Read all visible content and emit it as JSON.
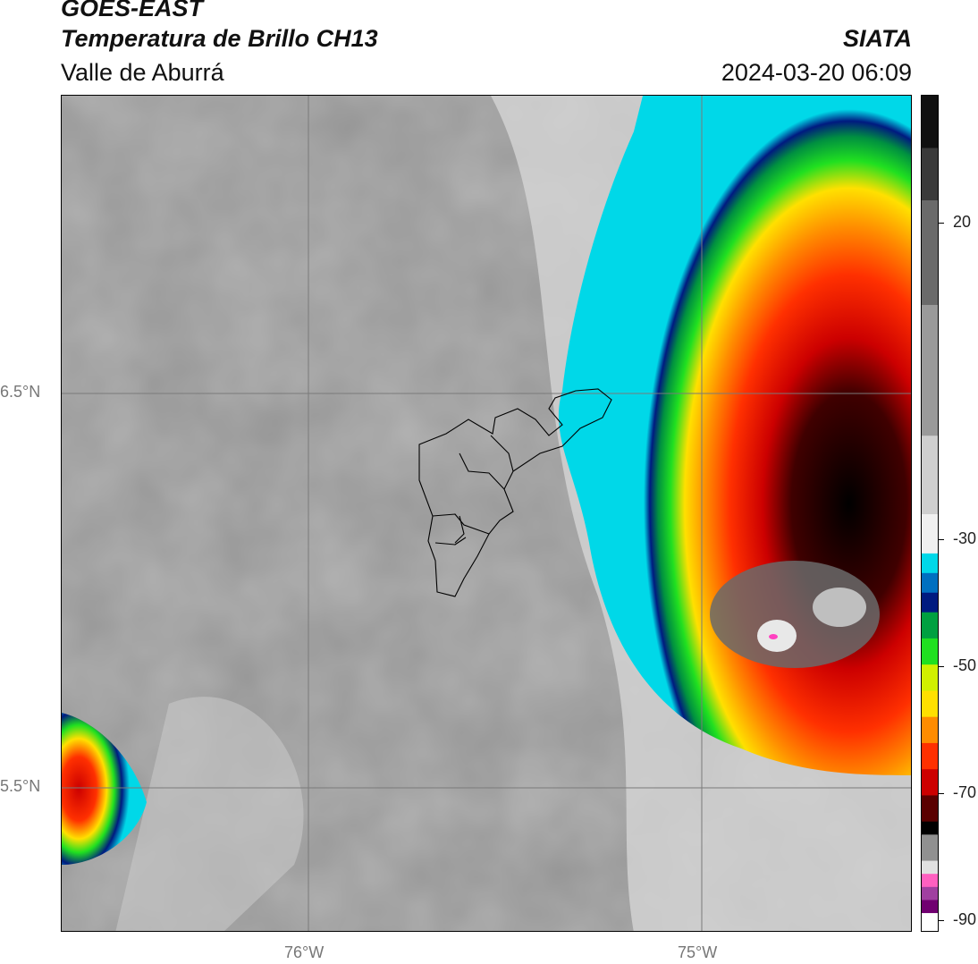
{
  "header": {
    "title_line1": "GOES-EAST",
    "title_line2": "Temperatura de Brillo CH13",
    "region": "Valle de Aburrá",
    "organization": "SIATA",
    "datetime": "2024-03-20 06:09"
  },
  "map": {
    "lat_labels": [
      "6.5°N",
      "5.5°N"
    ],
    "lon_labels": [
      "76°W",
      "75°W"
    ]
  },
  "colorbar": {
    "tick_labels": [
      "20",
      "-30",
      "-50",
      "-70",
      "-90"
    ],
    "palette": [
      "#101010",
      "#3a3a3a",
      "#6a6a6a",
      "#9a9a9a",
      "#cfcfcf",
      "#f0f0f0",
      "#00d8e8",
      "#0070c0",
      "#001a80",
      "#00a040",
      "#20e020",
      "#d0f000",
      "#ffe000",
      "#ff8c00",
      "#ff3000",
      "#cc0000",
      "#5a0000",
      "#000000",
      "#909090",
      "#e0e0e0",
      "#ff60c0",
      "#a040a0",
      "#700070",
      "#ffffff"
    ]
  }
}
